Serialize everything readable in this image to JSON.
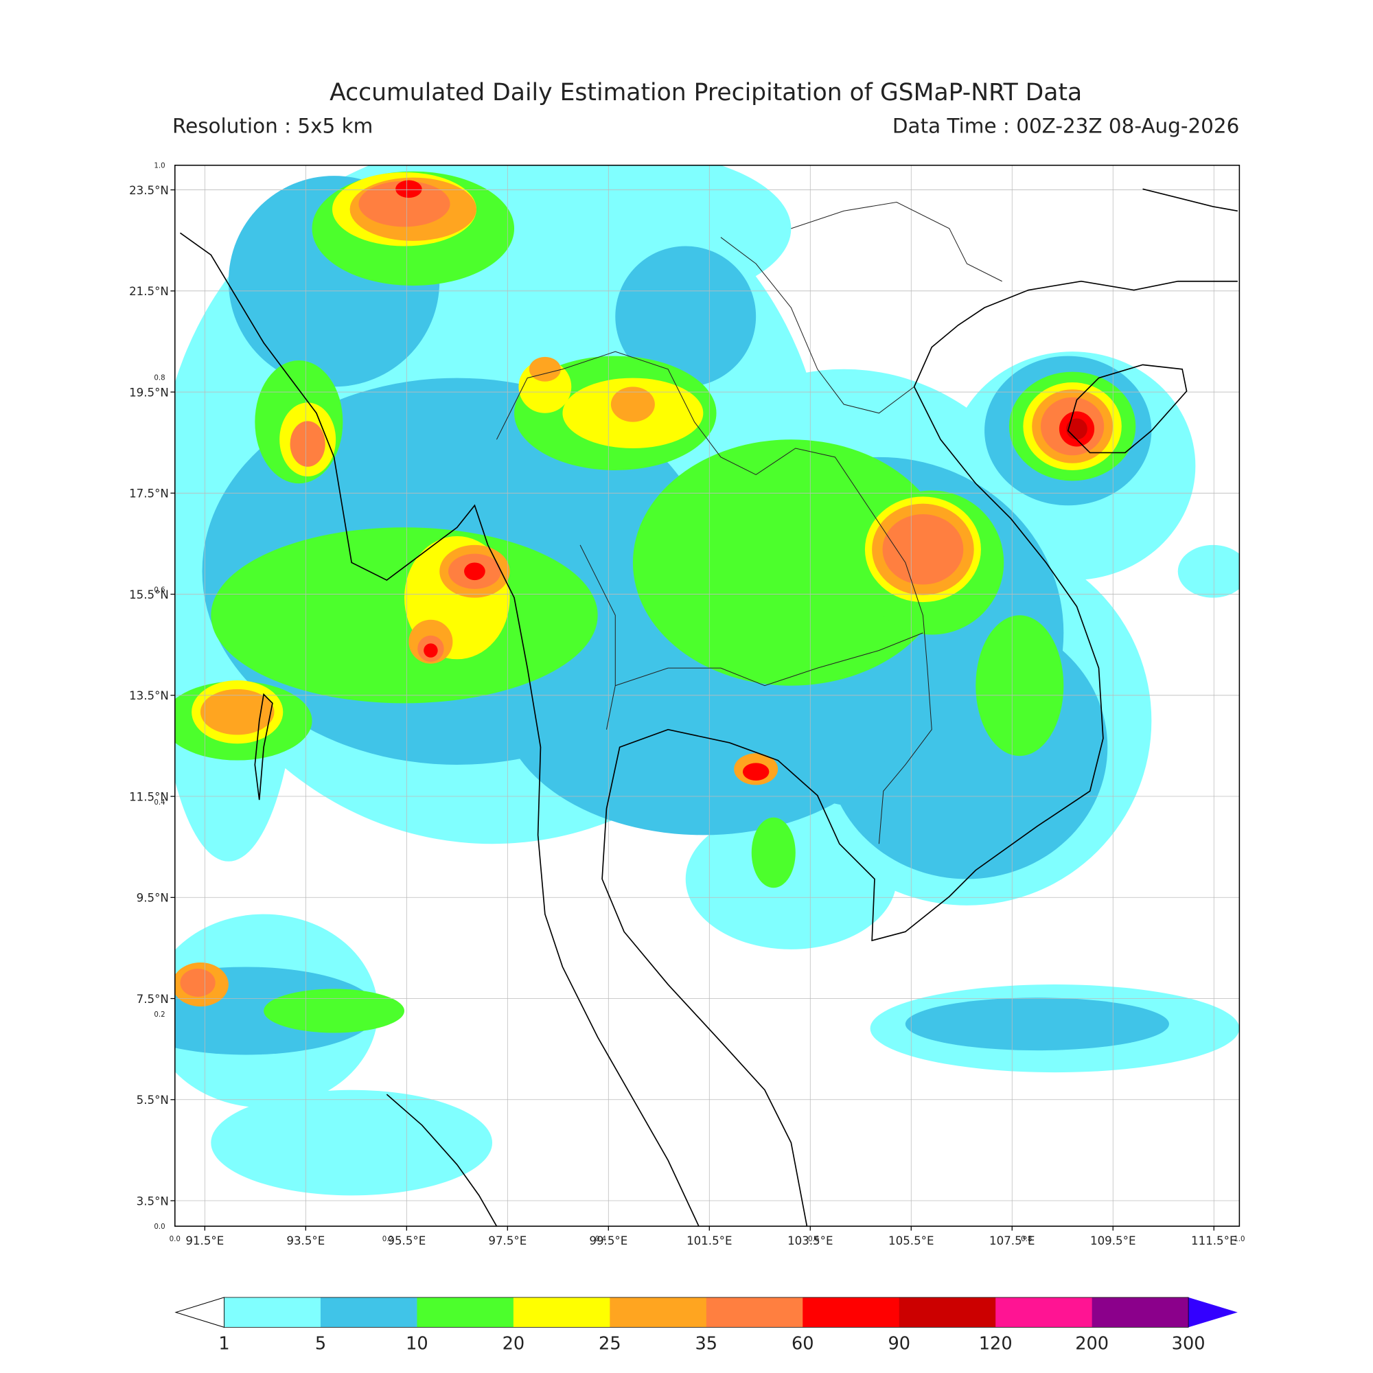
{
  "header": {
    "title": "Accumulated Daily Estimation Precipitation of GSMaP-NRT Data",
    "resolution": "Resolution : 5x5 km",
    "data_time": "Data Time : 00Z-23Z 08-Aug-2026"
  },
  "map": {
    "longitude_labels": [
      "91.5°E",
      "93.5°E",
      "95.5°E",
      "97.5°E",
      "99.5°E",
      "101.5°E",
      "103.5°E",
      "105.5°E",
      "107.5°E",
      "109.5°E",
      "111.5°E"
    ],
    "latitude_labels": [
      "23.5°N",
      "21.5°N",
      "19.5°N",
      "17.5°N",
      "15.5°N",
      "13.5°N",
      "11.5°N",
      "9.5°N",
      "7.5°N",
      "5.5°N",
      "3.5°N"
    ],
    "frame_left_labels": [
      "1.0",
      "0.8",
      "0.6",
      "0.4",
      "0.2",
      "0.0"
    ],
    "frame_bottom_labels": [
      "0.0",
      "0.2",
      "0.4",
      "0.6",
      "0.8",
      "1.0"
    ]
  },
  "colorbar": {
    "levels": [
      1,
      5,
      10,
      20,
      25,
      35,
      60,
      90,
      120,
      200,
      300
    ],
    "colors": [
      "#80ffff",
      "#40c4e8",
      "#4cff2c",
      "#ffff00",
      "#ffa520",
      "#ff7f40",
      "#ff0000",
      "#cc0000",
      "#ff1493",
      "#8b008b"
    ],
    "under_color": "#ffffff",
    "over_color": "#3300ff"
  }
}
